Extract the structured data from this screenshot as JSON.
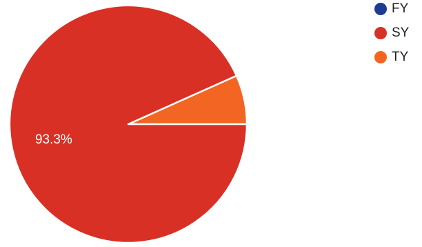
{
  "chart_data": {
    "type": "pie",
    "legend_position": "top-right",
    "slices": [
      {
        "label": "FY",
        "value": 0.0,
        "color": "#1f3a93"
      },
      {
        "label": "SY",
        "value": 93.3,
        "color": "#d93025"
      },
      {
        "label": "TY",
        "value": 6.7,
        "color": "#f26522"
      }
    ],
    "data_labels": [
      {
        "slice": "SY",
        "text": "93.3%"
      }
    ]
  }
}
